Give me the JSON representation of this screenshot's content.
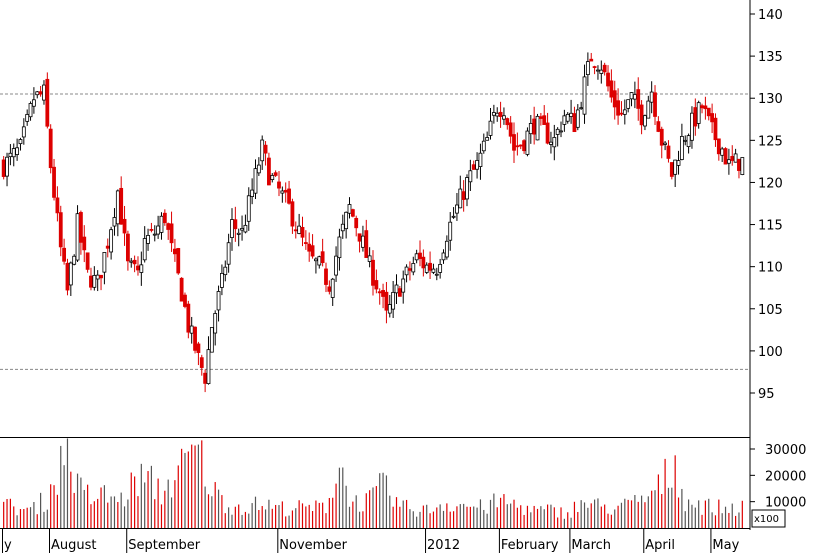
{
  "chart_data": {
    "type": "candlestick",
    "price_axis": {
      "ylim": [
        91,
        141
      ],
      "ticks": [
        95,
        100,
        105,
        110,
        115,
        120,
        125,
        130,
        135,
        140
      ]
    },
    "volume_axis": {
      "ylim": [
        0,
        36000
      ],
      "ticks": [
        10000,
        20000,
        30000
      ],
      "ticks_text": [
        "10000",
        "20000",
        "30000"
      ],
      "multiplier_label": "x100"
    },
    "reference_lines": [
      97.8,
      130.5
    ],
    "months": [
      {
        "label": "y",
        "day": 0
      },
      {
        "label": "August",
        "day": 14
      },
      {
        "label": "September",
        "day": 37
      },
      {
        "label": "November",
        "day": 82
      },
      {
        "label": "2012",
        "day": 126
      },
      {
        "label": "February",
        "day": 148
      },
      {
        "label": "March",
        "day": 169
      },
      {
        "label": "April",
        "day": 191
      },
      {
        "label": "May",
        "day": 211
      }
    ],
    "days_total": 221,
    "close_anchors": [
      [
        0,
        122
      ],
      [
        5,
        124
      ],
      [
        9,
        130
      ],
      [
        12,
        130.5
      ],
      [
        14,
        122
      ],
      [
        17,
        112
      ],
      [
        19,
        107
      ],
      [
        22,
        115
      ],
      [
        25,
        109
      ],
      [
        28,
        108
      ],
      [
        31,
        113
      ],
      [
        34,
        119
      ],
      [
        37,
        110
      ],
      [
        40,
        109
      ],
      [
        42,
        113
      ],
      [
        45,
        114
      ],
      [
        48,
        116
      ],
      [
        50,
        112
      ],
      [
        53,
        107
      ],
      [
        55,
        103
      ],
      [
        58,
        99
      ],
      [
        60,
        97
      ],
      [
        62,
        103
      ],
      [
        65,
        108
      ],
      [
        68,
        115
      ],
      [
        71,
        114
      ],
      [
        74,
        119
      ],
      [
        77,
        124
      ],
      [
        79,
        121
      ],
      [
        82,
        119
      ],
      [
        85,
        117
      ],
      [
        88,
        114
      ],
      [
        91,
        111
      ],
      [
        94,
        110
      ],
      [
        97,
        108
      ],
      [
        100,
        113
      ],
      [
        103,
        117
      ],
      [
        106,
        114
      ],
      [
        109,
        110
      ],
      [
        112,
        107
      ],
      [
        114,
        104
      ],
      [
        117,
        107
      ],
      [
        120,
        109
      ],
      [
        123,
        111
      ],
      [
        126,
        110
      ],
      [
        129,
        110
      ],
      [
        132,
        114
      ],
      [
        135,
        117
      ],
      [
        138,
        120
      ],
      [
        141,
        122
      ],
      [
        144,
        125
      ],
      [
        147,
        129
      ],
      [
        149,
        129
      ],
      [
        152,
        124
      ],
      [
        155,
        125
      ],
      [
        158,
        127
      ],
      [
        161,
        126
      ],
      [
        164,
        125
      ],
      [
        167,
        128
      ],
      [
        170,
        127
      ],
      [
        172,
        130
      ],
      [
        175,
        135
      ],
      [
        178,
        134
      ],
      [
        181,
        130
      ],
      [
        184,
        128
      ],
      [
        187,
        130
      ],
      [
        190,
        128
      ],
      [
        193,
        131
      ],
      [
        196,
        125
      ],
      [
        199,
        121
      ],
      [
        202,
        125
      ],
      [
        205,
        127
      ],
      [
        208,
        129
      ],
      [
        211,
        126
      ],
      [
        214,
        124
      ],
      [
        216,
        122
      ],
      [
        219,
        122.5
      ]
    ],
    "volume_anchors": [
      [
        0,
        9000
      ],
      [
        8,
        7000
      ],
      [
        13,
        12000
      ],
      [
        17,
        25000
      ],
      [
        19,
        33000
      ],
      [
        22,
        16000
      ],
      [
        26,
        12000
      ],
      [
        30,
        13000
      ],
      [
        35,
        11000
      ],
      [
        40,
        20000
      ],
      [
        44,
        18000
      ],
      [
        47,
        14000
      ],
      [
        52,
        22000
      ],
      [
        56,
        28000
      ],
      [
        58,
        31000
      ],
      [
        60,
        22000
      ],
      [
        63,
        14000
      ],
      [
        67,
        9000
      ],
      [
        72,
        8500
      ],
      [
        77,
        9500
      ],
      [
        82,
        8000
      ],
      [
        88,
        8000
      ],
      [
        93,
        8000
      ],
      [
        96,
        9000
      ],
      [
        100,
        25000
      ],
      [
        104,
        10000
      ],
      [
        109,
        11000
      ],
      [
        113,
        17000
      ],
      [
        116,
        11000
      ],
      [
        120,
        8000
      ],
      [
        126,
        7000
      ],
      [
        131,
        10000
      ],
      [
        138,
        9000
      ],
      [
        143,
        8000
      ],
      [
        148,
        11000
      ],
      [
        153,
        9000
      ],
      [
        158,
        7000
      ],
      [
        163,
        7000
      ],
      [
        168,
        6000
      ],
      [
        172,
        10000
      ],
      [
        176,
        9000
      ],
      [
        181,
        8000
      ],
      [
        186,
        9000
      ],
      [
        190,
        11000
      ],
      [
        194,
        14000
      ],
      [
        198,
        22000
      ],
      [
        200,
        25000
      ],
      [
        203,
        11000
      ],
      [
        208,
        9000
      ],
      [
        213,
        8000
      ],
      [
        219,
        8000
      ]
    ]
  }
}
